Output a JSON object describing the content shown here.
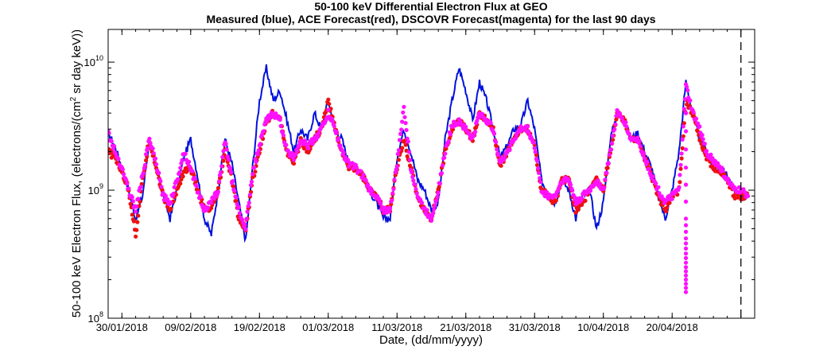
{
  "chart_data": {
    "type": "line",
    "title": "50-100 keV Differential Electron Flux at GEO",
    "subtitle": "Measured (blue), ACE Forecast(red), DSCOVR Forecast(magenta) for the last 90 days",
    "xlabel": "Date, (dd/mm/yyyy)",
    "ylabel": {
      "prefix": "50-100 keV Electron Flux, (electrons/(cm",
      "sup": "2",
      "suffix": " sr day keV))"
    },
    "yscale": "log",
    "ylim": [
      100000000,
      18000000000
    ],
    "xlim": [
      "2018-01-28",
      "2018-05-02"
    ],
    "x_ticks": [
      "30/01/2018",
      "09/02/2018",
      "19/02/2018",
      "01/03/2018",
      "11/03/2018",
      "21/03/2018",
      "31/03/2018",
      "10/04/2018",
      "20/04/2018"
    ],
    "y_ticks": [
      {
        "value": 100000000,
        "base": "10",
        "exp": "8"
      },
      {
        "value": 1000000000,
        "base": "10",
        "exp": "9"
      },
      {
        "value": 10000000000,
        "base": "10",
        "exp": "10"
      }
    ],
    "now_marker": "2018-04-30",
    "colors": {
      "measured": "#0011dd",
      "ace": "#ee1111",
      "dscovr": "#ff11ff",
      "axis": "#000000"
    },
    "series": [
      {
        "key": "measured",
        "style": "line",
        "x": [
          "2018-01-28",
          "2018-01-29",
          "2018-01-30",
          "2018-01-31",
          "2018-02-01",
          "2018-02-02",
          "2018-02-03",
          "2018-02-04",
          "2018-02-05",
          "2018-02-06",
          "2018-02-07",
          "2018-02-08",
          "2018-02-09",
          "2018-02-10",
          "2018-02-11",
          "2018-02-12",
          "2018-02-13",
          "2018-02-14",
          "2018-02-15",
          "2018-02-16",
          "2018-02-17",
          "2018-02-18",
          "2018-02-19",
          "2018-02-20",
          "2018-02-21",
          "2018-02-22",
          "2018-02-23",
          "2018-02-24",
          "2018-02-25",
          "2018-02-26",
          "2018-02-27",
          "2018-02-28",
          "2018-03-01",
          "2018-03-02",
          "2018-03-03",
          "2018-03-04",
          "2018-03-05",
          "2018-03-06",
          "2018-03-07",
          "2018-03-08",
          "2018-03-09",
          "2018-03-10",
          "2018-03-11",
          "2018-03-12",
          "2018-03-13",
          "2018-03-14",
          "2018-03-15",
          "2018-03-16",
          "2018-03-17",
          "2018-03-18",
          "2018-03-19",
          "2018-03-20",
          "2018-03-21",
          "2018-03-22",
          "2018-03-23",
          "2018-03-24",
          "2018-03-25",
          "2018-03-26",
          "2018-03-27",
          "2018-03-28",
          "2018-03-29",
          "2018-03-30",
          "2018-03-31",
          "2018-04-01",
          "2018-04-02",
          "2018-04-03",
          "2018-04-04",
          "2018-04-05",
          "2018-04-06",
          "2018-04-07",
          "2018-04-08",
          "2018-04-09",
          "2018-04-10",
          "2018-04-11",
          "2018-04-12",
          "2018-04-13",
          "2018-04-14",
          "2018-04-15",
          "2018-04-16",
          "2018-04-17",
          "2018-04-18",
          "2018-04-19",
          "2018-04-20",
          "2018-04-21",
          "2018-04-22",
          "2018-04-23",
          "2018-04-24",
          "2018-04-25",
          "2018-04-26",
          "2018-04-27",
          "2018-04-28",
          "2018-04-29",
          "2018-04-30",
          "2018-05-01"
        ],
        "y": [
          2800000000.0,
          2200000000.0,
          1500000000.0,
          1000000000.0,
          600000000.0,
          900000000.0,
          2500000000.0,
          1500000000.0,
          900000000.0,
          600000000.0,
          1000000000.0,
          1800000000.0,
          2500000000.0,
          1300000000.0,
          600000000.0,
          450000000.0,
          1000000000.0,
          2500000000.0,
          1600000000.0,
          800000000.0,
          400000000.0,
          1500000000.0,
          5000000000.0,
          9000000000.0,
          5000000000.0,
          6000000000.0,
          3500000000.0,
          2000000000.0,
          3000000000.0,
          2500000000.0,
          4000000000.0,
          3000000000.0,
          5000000000.0,
          3000000000.0,
          2500000000.0,
          1600000000.0,
          1500000000.0,
          1300000000.0,
          1000000000.0,
          800000000.0,
          600000000.0,
          600000000.0,
          1800000000.0,
          3000000000.0,
          2000000000.0,
          1200000000.0,
          1000000000.0,
          700000000.0,
          800000000.0,
          2500000000.0,
          5000000000.0,
          9000000000.0,
          6000000000.0,
          3500000000.0,
          7000000000.0,
          5000000000.0,
          3000000000.0,
          1800000000.0,
          2200000000.0,
          3000000000.0,
          3200000000.0,
          5000000000.0,
          3000000000.0,
          1200000000.0,
          900000000.0,
          800000000.0,
          1200000000.0,
          1000000000.0,
          600000000.0,
          900000000.0,
          1000000000.0,
          500000000.0,
          800000000.0,
          2500000000.0,
          4000000000.0,
          3500000000.0,
          2500000000.0,
          2800000000.0,
          2000000000.0,
          1500000000.0,
          900000000.0,
          600000000.0,
          1000000000.0,
          2000000000.0,
          7000000000.0,
          4000000000.0,
          2500000000.0,
          2000000000.0,
          1500000000.0,
          1500000000.0,
          1300000000.0,
          1000000000.0,
          900000000.0,
          900000000.0
        ]
      },
      {
        "key": "ace",
        "style": "dots",
        "x": [
          "2018-01-28",
          "2018-01-29",
          "2018-01-30",
          "2018-01-31",
          "2018-02-01",
          "2018-02-02",
          "2018-02-03",
          "2018-02-04",
          "2018-02-05",
          "2018-02-06",
          "2018-02-07",
          "2018-02-08",
          "2018-02-09",
          "2018-02-10",
          "2018-02-11",
          "2018-02-12",
          "2018-02-13",
          "2018-02-14",
          "2018-02-15",
          "2018-02-16",
          "2018-02-17",
          "2018-02-18",
          "2018-02-19",
          "2018-02-20",
          "2018-02-21",
          "2018-02-22",
          "2018-02-23",
          "2018-02-24",
          "2018-02-25",
          "2018-02-26",
          "2018-02-27",
          "2018-02-28",
          "2018-03-01",
          "2018-03-02",
          "2018-03-03",
          "2018-03-04",
          "2018-03-05",
          "2018-03-06",
          "2018-03-07",
          "2018-03-08",
          "2018-03-09",
          "2018-03-10",
          "2018-03-11",
          "2018-03-12",
          "2018-03-13",
          "2018-03-14",
          "2018-03-15",
          "2018-03-16",
          "2018-03-17",
          "2018-03-18",
          "2018-03-19",
          "2018-03-20",
          "2018-03-21",
          "2018-03-22",
          "2018-03-23",
          "2018-03-24",
          "2018-03-25",
          "2018-03-26",
          "2018-03-27",
          "2018-03-28",
          "2018-03-29",
          "2018-03-30",
          "2018-03-31",
          "2018-04-01",
          "2018-04-02",
          "2018-04-03",
          "2018-04-04",
          "2018-04-05",
          "2018-04-06",
          "2018-04-07",
          "2018-04-08",
          "2018-04-09",
          "2018-04-10",
          "2018-04-11",
          "2018-04-12",
          "2018-04-13",
          "2018-04-14",
          "2018-04-15",
          "2018-04-16",
          "2018-04-17",
          "2018-04-18",
          "2018-04-19",
          "2018-04-20",
          "2018-04-21",
          "2018-04-22",
          "2018-04-23",
          "2018-04-24",
          "2018-04-25",
          "2018-04-26",
          "2018-04-27",
          "2018-04-28",
          "2018-04-29",
          "2018-04-30",
          "2018-05-01"
        ],
        "y": [
          2000000000.0,
          1800000000.0,
          1400000000.0,
          1000000000.0,
          450000000.0,
          1200000000.0,
          2500000000.0,
          1500000000.0,
          900000000.0,
          700000000.0,
          1000000000.0,
          1400000000.0,
          1500000000.0,
          1000000000.0,
          700000000.0,
          700000000.0,
          1000000000.0,
          2000000000.0,
          1200000000.0,
          600000000.0,
          500000000.0,
          1200000000.0,
          2000000000.0,
          3500000000.0,
          4000000000.0,
          3500000000.0,
          2000000000.0,
          1600000000.0,
          2500000000.0,
          2000000000.0,
          2500000000.0,
          3000000000.0,
          5000000000.0,
          3000000000.0,
          2000000000.0,
          1500000000.0,
          1500000000.0,
          1300000000.0,
          1000000000.0,
          900000000.0,
          700000000.0,
          700000000.0,
          1500000000.0,
          2500000000.0,
          1500000000.0,
          900000000.0,
          700000000.0,
          600000000.0,
          1000000000.0,
          2000000000.0,
          3000000000.0,
          3500000000.0,
          3000000000.0,
          2500000000.0,
          4000000000.0,
          3500000000.0,
          3000000000.0,
          1500000000.0,
          2000000000.0,
          2500000000.0,
          3000000000.0,
          3000000000.0,
          2200000000.0,
          1000000000.0,
          900000000.0,
          800000000.0,
          1200000000.0,
          1200000000.0,
          700000000.0,
          800000000.0,
          1000000000.0,
          1200000000.0,
          1000000000.0,
          2000000000.0,
          4000000000.0,
          3500000000.0,
          2500000000.0,
          2500000000.0,
          1800000000.0,
          1300000000.0,
          900000000.0,
          700000000.0,
          900000000.0,
          1000000000.0,
          5000000000.0,
          4000000000.0,
          2500000000.0,
          1800000000.0,
          1500000000.0,
          1400000000.0,
          1200000000.0,
          900000000.0,
          900000000.0,
          900000000.0
        ]
      },
      {
        "key": "dscovr",
        "style": "dots",
        "x": [
          "2018-01-28",
          "2018-01-29",
          "2018-01-30",
          "2018-01-31",
          "2018-02-01",
          "2018-02-02",
          "2018-02-03",
          "2018-02-04",
          "2018-02-05",
          "2018-02-06",
          "2018-02-07",
          "2018-02-08",
          "2018-02-09",
          "2018-02-10",
          "2018-02-11",
          "2018-02-12",
          "2018-02-13",
          "2018-02-14",
          "2018-02-15",
          "2018-02-16",
          "2018-02-17",
          "2018-02-18",
          "2018-02-19",
          "2018-02-20",
          "2018-02-21",
          "2018-02-22",
          "2018-02-23",
          "2018-02-24",
          "2018-02-25",
          "2018-02-26",
          "2018-02-27",
          "2018-02-28",
          "2018-03-01",
          "2018-03-02",
          "2018-03-03",
          "2018-03-04",
          "2018-03-05",
          "2018-03-06",
          "2018-03-07",
          "2018-03-08",
          "2018-03-09",
          "2018-03-10",
          "2018-03-11",
          "2018-03-12",
          "2018-03-13",
          "2018-03-14",
          "2018-03-15",
          "2018-03-16",
          "2018-03-17",
          "2018-03-18",
          "2018-03-19",
          "2018-03-20",
          "2018-03-21",
          "2018-03-22",
          "2018-03-23",
          "2018-03-24",
          "2018-03-25",
          "2018-03-26",
          "2018-03-27",
          "2018-03-28",
          "2018-03-29",
          "2018-03-30",
          "2018-03-31",
          "2018-04-01",
          "2018-04-02",
          "2018-04-03",
          "2018-04-04",
          "2018-04-05",
          "2018-04-06",
          "2018-04-07",
          "2018-04-08",
          "2018-04-09",
          "2018-04-10",
          "2018-04-11",
          "2018-04-12",
          "2018-04-13",
          "2018-04-14",
          "2018-04-15",
          "2018-04-16",
          "2018-04-17",
          "2018-04-18",
          "2018-04-19",
          "2018-04-20",
          "2018-04-21",
          "2018-04-22",
          "2018-04-23",
          "2018-04-24",
          "2018-04-25",
          "2018-04-26",
          "2018-04-27",
          "2018-04-28",
          "2018-04-29",
          "2018-04-30",
          "2018-05-01"
        ],
        "y": [
          2800000000.0,
          2000000000.0,
          1500000000.0,
          1000000000.0,
          700000000.0,
          1300000000.0,
          2500000000.0,
          1600000000.0,
          900000000.0,
          800000000.0,
          1200000000.0,
          2000000000.0,
          1500000000.0,
          1000000000.0,
          700000000.0,
          800000000.0,
          1000000000.0,
          2500000000.0,
          1200000000.0,
          700000000.0,
          500000000.0,
          1400000000.0,
          2200000000.0,
          3500000000.0,
          4000000000.0,
          3500000000.0,
          2000000000.0,
          1800000000.0,
          2500000000.0,
          2200000000.0,
          2500000000.0,
          3000000000.0,
          4000000000.0,
          3000000000.0,
          2000000000.0,
          1600000000.0,
          1500000000.0,
          1300000000.0,
          1000000000.0,
          900000000.0,
          700000000.0,
          700000000.0,
          1600000000.0,
          4500000000.0,
          1500000000.0,
          900000000.0,
          700000000.0,
          600000000.0,
          1000000000.0,
          2000000000.0,
          3200000000.0,
          3500000000.0,
          3000000000.0,
          2500000000.0,
          4000000000.0,
          3500000000.0,
          3000000000.0,
          1600000000.0,
          2000000000.0,
          2500000000.0,
          3000000000.0,
          3000000000.0,
          2200000000.0,
          1000000000.0,
          900000000.0,
          900000000.0,
          1200000000.0,
          1200000000.0,
          800000000.0,
          900000000.0,
          1000000000.0,
          1200000000.0,
          1000000000.0,
          2000000000.0,
          4000000000.0,
          3500000000.0,
          2500000000.0,
          2500000000.0,
          1800000000.0,
          1300000000.0,
          1000000000.0,
          800000000.0,
          900000000.0,
          1000000000.0,
          6500000000.0,
          4000000000.0,
          3000000000.0,
          2000000000.0,
          1700000000.0,
          1500000000.0,
          1200000000.0,
          1000000000.0,
          1000000000.0,
          900000000.0
        ]
      }
    ],
    "dscovr_dropout": {
      "x": [
        "2018-04-22",
        "2018-04-22",
        "2018-04-22",
        "2018-04-22",
        "2018-04-22",
        "2018-04-22",
        "2018-04-22",
        "2018-04-22"
      ],
      "y": [
        160000000.0,
        200000000.0,
        250000000.0,
        320000000.0,
        420000000.0,
        600000000.0,
        1500000000.0,
        4000000000.0
      ]
    }
  }
}
